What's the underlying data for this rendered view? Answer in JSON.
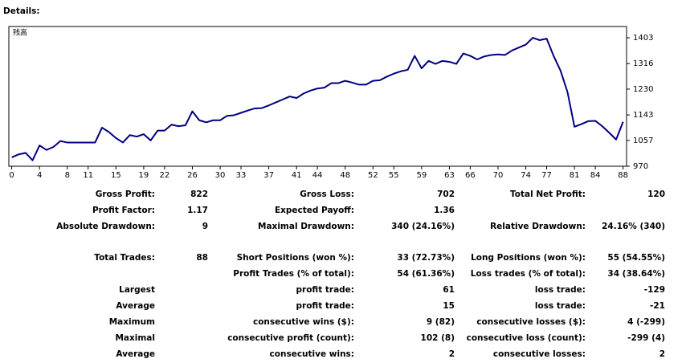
{
  "header": {
    "title": "Details:"
  },
  "chart_data": {
    "type": "line",
    "label": "残高",
    "x": [
      0,
      1,
      2,
      3,
      4,
      5,
      6,
      7,
      8,
      9,
      10,
      11,
      12,
      13,
      14,
      15,
      16,
      17,
      18,
      19,
      20,
      21,
      22,
      23,
      24,
      25,
      26,
      27,
      28,
      29,
      30,
      31,
      32,
      33,
      34,
      35,
      36,
      37,
      38,
      39,
      40,
      41,
      42,
      43,
      44,
      45,
      46,
      47,
      48,
      49,
      50,
      51,
      52,
      53,
      54,
      55,
      56,
      57,
      58,
      59,
      60,
      61,
      62,
      63,
      64,
      65,
      66,
      67,
      68,
      69,
      70,
      71,
      72,
      73,
      74,
      75,
      76,
      77,
      78,
      79,
      80,
      81,
      82,
      83,
      84,
      85,
      86,
      87,
      88
    ],
    "series": [
      {
        "color": "#000080",
        "values": [
          1000,
          1010,
          1015,
          990,
          1040,
          1025,
          1035,
          1055,
          1050,
          1050,
          1050,
          1050,
          1050,
          1100,
          1085,
          1065,
          1050,
          1075,
          1070,
          1078,
          1057,
          1090,
          1090,
          1110,
          1105,
          1108,
          1155,
          1125,
          1118,
          1125,
          1125,
          1140,
          1142,
          1150,
          1158,
          1165,
          1166,
          1175,
          1185,
          1195,
          1205,
          1200,
          1215,
          1225,
          1232,
          1235,
          1250,
          1250,
          1258,
          1252,
          1245,
          1245,
          1258,
          1260,
          1272,
          1282,
          1290,
          1295,
          1342,
          1300,
          1325,
          1315,
          1325,
          1322,
          1315,
          1350,
          1342,
          1330,
          1340,
          1345,
          1347,
          1345,
          1360,
          1370,
          1380,
          1403,
          1395,
          1400,
          1342,
          1292,
          1220,
          1103,
          1112,
          1122,
          1123,
          1105,
          1083,
          1060,
          1120
        ]
      }
    ],
    "xlim": [
      -0.3,
      88.5
    ],
    "xticks": [
      0,
      4,
      8,
      11,
      15,
      19,
      22,
      26,
      30,
      33,
      37,
      41,
      44,
      48,
      52,
      55,
      59,
      63,
      66,
      70,
      74,
      77,
      81,
      84,
      88
    ],
    "ylim": [
      970,
      1441
    ],
    "yticks": [
      970,
      1057,
      1143,
      1230,
      1316,
      1403
    ],
    "grid": false
  },
  "stats": [
    [
      {
        "left": {
          "label": "Gross Profit:",
          "value": 822
        },
        "mid": {
          "label": "Gross Loss:",
          "value": 702
        },
        "right": {
          "label": "Total Net Profit:",
          "value": 120
        }
      },
      {
        "left": {
          "label": "Profit Factor:",
          "value": 1.17
        },
        "mid": {
          "label": "Expected Payoff:",
          "value": 1.36
        }
      },
      {
        "left": {
          "label": "Absolute Drawdown:",
          "value": 9
        },
        "mid": {
          "label": "Maximal Drawdown:",
          "value": "340 (24.16%)"
        },
        "right": {
          "label": "Relative Drawdown:",
          "value": "24.16% (340)"
        }
      }
    ],
    [
      {
        "left": {
          "label": "Total Trades:",
          "value": 88
        },
        "mid": {
          "label": "Short Positions (won %):",
          "value": "33 (72.73%)"
        },
        "right": {
          "label": "Long Positions (won %):",
          "value": "55 (54.55%)"
        }
      },
      {
        "mid": {
          "label": "Profit Trades (% of total):",
          "value": "54 (61.36%)"
        },
        "right": {
          "label": "Loss trades (% of total):",
          "value": "34 (38.64%)"
        }
      },
      {
        "left": {
          "label": "Largest"
        },
        "mid": {
          "label": "profit trade:",
          "value": 61
        },
        "right": {
          "label": "loss trade:",
          "value": -129
        }
      },
      {
        "left": {
          "label": "Average"
        },
        "mid": {
          "label": "profit trade:",
          "value": 15
        },
        "right": {
          "label": "loss trade:",
          "value": -21
        }
      },
      {
        "left": {
          "label": "Maximum"
        },
        "mid": {
          "label": "consecutive wins ($):",
          "value": "9 (82)"
        },
        "right": {
          "label": "consecutive losses ($):",
          "value": "4 (-299)"
        }
      },
      {
        "left": {
          "label": "Maximal"
        },
        "mid": {
          "label": "consecutive profit (count):",
          "value": "102 (8)"
        },
        "right": {
          "label": "consecutive loss (count):",
          "value": "-299 (4)"
        }
      },
      {
        "left": {
          "label": "Average"
        },
        "mid": {
          "label": "consecutive wins:",
          "value": 2
        },
        "right": {
          "label": "consecutive losses:",
          "value": 2
        }
      }
    ]
  ]
}
